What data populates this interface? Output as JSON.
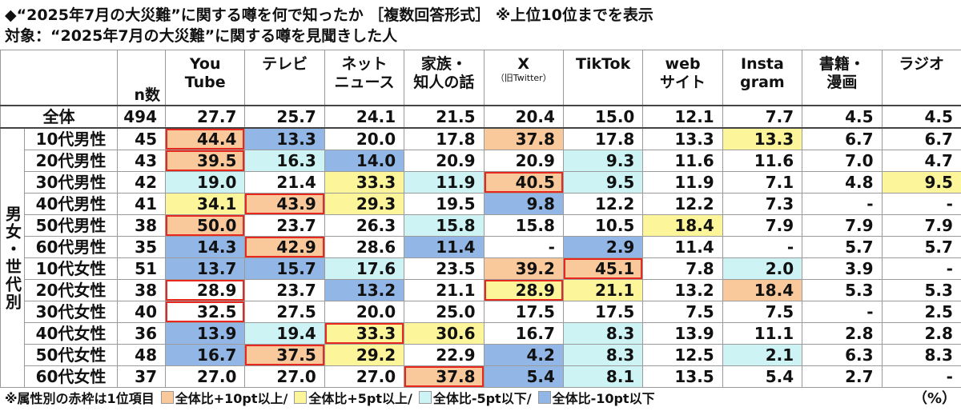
{
  "title": "◆“2025年7月の大災難”に関する噂を何で知ったか ［複数回答形式］ ※上位10位までを表示",
  "subtitle": "対象：“2025年7月の大災難”に関する噂を見聞きした人",
  "table": {
    "n_header": "n数",
    "columns": [
      {
        "lines": [
          "You",
          "Tube"
        ]
      },
      {
        "lines": [
          "テレビ"
        ]
      },
      {
        "lines": [
          "ネット",
          "ニュース"
        ]
      },
      {
        "lines": [
          "家族・",
          "知人の話"
        ]
      },
      {
        "lines": [
          "X"
        ],
        "note": "（旧Twitter）"
      },
      {
        "lines": [
          "TikTok"
        ]
      },
      {
        "lines": [
          "web",
          "サイト"
        ]
      },
      {
        "lines": [
          "Insta",
          "gram"
        ]
      },
      {
        "lines": [
          "書籍・",
          "漫画"
        ]
      },
      {
        "lines": [
          "ラジオ"
        ]
      }
    ],
    "total": {
      "label": "全体",
      "n": 494,
      "values": [
        "27.7",
        "25.7",
        "24.1",
        "21.5",
        "20.4",
        "15.0",
        "12.1",
        "7.7",
        "4.5",
        "4.5"
      ]
    },
    "group_label": "男女・世代別",
    "rows": [
      {
        "label": "10代男性",
        "n": 45,
        "values": [
          "44.4",
          "13.3",
          "20.0",
          "17.8",
          "37.8",
          "17.8",
          "13.3",
          "13.3",
          "6.7",
          "6.7"
        ],
        "fills": [
          "#f9c89b",
          "#92b7e6",
          null,
          null,
          "#f9c89b",
          null,
          null,
          "#fdf59a",
          null,
          null
        ],
        "top": [
          0
        ]
      },
      {
        "label": "20代男性",
        "n": 43,
        "values": [
          "39.5",
          "16.3",
          "14.0",
          "20.9",
          "20.9",
          "9.3",
          "11.6",
          "11.6",
          "7.0",
          "4.7"
        ],
        "fills": [
          "#f9c89b",
          "#cdf3f5",
          "#92b7e6",
          null,
          null,
          "#cdf3f5",
          null,
          null,
          null,
          null
        ],
        "top": [
          0
        ]
      },
      {
        "label": "30代男性",
        "n": 42,
        "values": [
          "19.0",
          "21.4",
          "33.3",
          "11.9",
          "40.5",
          "9.5",
          "11.9",
          "7.1",
          "4.8",
          "9.5"
        ],
        "fills": [
          "#cdf3f5",
          null,
          "#fdf59a",
          "#cdf3f5",
          "#f9c89b",
          "#cdf3f5",
          null,
          null,
          null,
          "#fdf59a"
        ],
        "top": [
          4
        ]
      },
      {
        "label": "40代男性",
        "n": 41,
        "values": [
          "34.1",
          "43.9",
          "29.3",
          "19.5",
          "9.8",
          "12.2",
          "12.2",
          "7.3",
          "-",
          "-"
        ],
        "fills": [
          "#fdf59a",
          "#f9c89b",
          "#fdf59a",
          null,
          "#92b7e6",
          null,
          null,
          null,
          null,
          null
        ],
        "top": [
          1
        ]
      },
      {
        "label": "50代男性",
        "n": 38,
        "values": [
          "50.0",
          "23.7",
          "26.3",
          "15.8",
          "15.8",
          "10.5",
          "18.4",
          "7.9",
          "7.9",
          "7.9"
        ],
        "fills": [
          "#f9c89b",
          null,
          null,
          "#cdf3f5",
          null,
          null,
          "#fdf59a",
          null,
          null,
          null
        ],
        "top": [
          0
        ]
      },
      {
        "label": "60代男性",
        "n": 35,
        "values": [
          "14.3",
          "42.9",
          "28.6",
          "11.4",
          "-",
          "2.9",
          "11.4",
          "-",
          "5.7",
          "5.7"
        ],
        "fills": [
          "#92b7e6",
          "#f9c89b",
          null,
          "#92b7e6",
          null,
          "#92b7e6",
          null,
          null,
          null,
          null
        ],
        "top": [
          1
        ]
      },
      {
        "label": "10代女性",
        "n": 51,
        "values": [
          "13.7",
          "15.7",
          "17.6",
          "23.5",
          "39.2",
          "45.1",
          "7.8",
          "2.0",
          "3.9",
          "-"
        ],
        "fills": [
          "#92b7e6",
          "#92b7e6",
          "#cdf3f5",
          null,
          "#f9c89b",
          "#f9c89b",
          null,
          "#cdf3f5",
          null,
          null
        ],
        "top": [
          5
        ]
      },
      {
        "label": "20代女性",
        "n": 38,
        "values": [
          "28.9",
          "23.7",
          "13.2",
          "21.1",
          "28.9",
          "21.1",
          "13.2",
          "18.4",
          "5.3",
          "5.3"
        ],
        "fills": [
          null,
          null,
          "#92b7e6",
          null,
          "#fdf59a",
          "#fdf59a",
          null,
          "#f9c89b",
          null,
          null
        ],
        "top": [
          0,
          4
        ]
      },
      {
        "label": "30代女性",
        "n": 40,
        "values": [
          "32.5",
          "27.5",
          "20.0",
          "25.0",
          "17.5",
          "17.5",
          "7.5",
          "7.5",
          "-",
          "2.5"
        ],
        "fills": [
          null,
          null,
          null,
          null,
          null,
          null,
          null,
          null,
          null,
          null
        ],
        "top": [
          0
        ]
      },
      {
        "label": "40代女性",
        "n": 36,
        "values": [
          "13.9",
          "19.4",
          "33.3",
          "30.6",
          "16.7",
          "8.3",
          "13.9",
          "11.1",
          "2.8",
          "2.8"
        ],
        "fills": [
          "#92b7e6",
          "#cdf3f5",
          "#fdf59a",
          "#fdf59a",
          null,
          "#cdf3f5",
          null,
          null,
          null,
          null
        ],
        "top": [
          2
        ]
      },
      {
        "label": "50代女性",
        "n": 48,
        "values": [
          "16.7",
          "37.5",
          "29.2",
          "22.9",
          "4.2",
          "8.3",
          "12.5",
          "2.1",
          "6.3",
          "8.3"
        ],
        "fills": [
          "#92b7e6",
          "#f9c89b",
          "#fdf59a",
          null,
          "#92b7e6",
          "#cdf3f5",
          null,
          "#cdf3f5",
          null,
          null
        ],
        "top": [
          1
        ]
      },
      {
        "label": "60代女性",
        "n": 37,
        "values": [
          "27.0",
          "27.0",
          "27.0",
          "37.8",
          "5.4",
          "8.1",
          "13.5",
          "5.4",
          "2.7",
          "-"
        ],
        "fills": [
          null,
          null,
          null,
          "#f9c89b",
          "#92b7e6",
          "#cdf3f5",
          null,
          null,
          null,
          null
        ],
        "top": [
          3
        ]
      }
    ]
  },
  "footer": {
    "note": "※属性別の赤枠は1位項目",
    "legend": [
      {
        "label": "全体比+10pt以上/",
        "color": "#f9c89b"
      },
      {
        "label": "全体比+5pt以上/",
        "color": "#fdf59a"
      },
      {
        "label": "全体比-5pt以下/",
        "color": "#cdf3f5"
      },
      {
        "label": "全体比-10pt以下",
        "color": "#92b7e6"
      }
    ],
    "unit": "（%）"
  }
}
